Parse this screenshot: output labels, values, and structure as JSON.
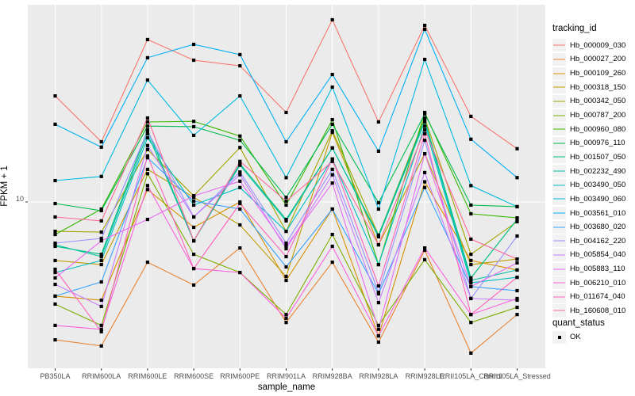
{
  "labels": {
    "y_axis_title": "FPKM + 1",
    "x_axis_title": "sample_name",
    "y_tick_label": "10"
  },
  "legend": {
    "tracking_title": "tracking_id",
    "quant_title": "quant_status",
    "quant_items": [
      {
        "label": "OK",
        "marker": "black-square"
      }
    ]
  },
  "colors": {
    "panel_background": "#EBEBEB",
    "gridline": "#FFFFFF",
    "tick_text": "#4D4D4D",
    "tick_mark": "#333333",
    "point": "#000000",
    "legend_key_background": "#F2F2F2"
  },
  "chart_data": {
    "type": "line",
    "title": "",
    "xlabel": "sample_name",
    "ylabel": "FPKM + 1",
    "yscale": "log10",
    "y_ticks": [
      10
    ],
    "ylim": [
      1.3,
      110
    ],
    "grid": "major-white-on-gray",
    "legend_position": "right",
    "point_marker": "black-square",
    "categories": [
      "PB350LA",
      "RRIM600LA",
      "RRIM600LE",
      "RRIM600SE",
      "RRIM600PE",
      "RRIM901LA",
      "RRIM928BA",
      "RRIM928LA",
      "RRIM928LE",
      "RRII105LA_Control",
      "RRII105LA_Stressed"
    ],
    "series": [
      {
        "name": "Hb_000009_030",
        "color": "#F8766D",
        "values": [
          38.2,
          21.4,
          77.9,
          60.0,
          55.9,
          31.0,
          100.0,
          27.5,
          93.2,
          29.5,
          19.6
        ]
      },
      {
        "name": "Hb_000027_200",
        "color": "#EA8331",
        "values": [
          1.75,
          1.62,
          4.67,
          3.5,
          5.59,
          2.18,
          4.67,
          1.7,
          5.43,
          1.48,
          2.41
        ]
      },
      {
        "name": "Hb_000109_260",
        "color": "#D89000",
        "values": [
          3.04,
          2.89,
          11.7,
          7.26,
          10.0,
          3.71,
          9.14,
          1.84,
          12.9,
          4.77,
          4.23
        ]
      },
      {
        "name": "Hb_000318_150",
        "color": "#C09B00",
        "values": [
          4.77,
          4.53,
          15.1,
          10.6,
          7.48,
          3.9,
          24.1,
          5.82,
          18.4,
          4.53,
          4.86
        ]
      },
      {
        "name": "Hb_000342_050",
        "color": "#A3A500",
        "values": [
          6.9,
          6.83,
          19.4,
          10.8,
          19.9,
          6.9,
          24.6,
          6.57,
          28.9,
          5.16,
          7.79
        ]
      },
      {
        "name": "Hb_000787_200",
        "color": "#7CAE00",
        "values": [
          2.75,
          2.1,
          14.3,
          5.16,
          4.1,
          2.41,
          6.63,
          2.1,
          4.82,
          2.18,
          2.64
        ]
      },
      {
        "name": "Hb_000960_080",
        "color": "#39B600",
        "values": [
          6.63,
          9.14,
          27.5,
          27.7,
          23.0,
          9.61,
          28.3,
          4.53,
          31.0,
          8.61,
          8.18
        ]
      },
      {
        "name": "Hb_000976_110",
        "color": "#00BB4E",
        "values": [
          9.8,
          8.96,
          26.1,
          25.9,
          21.8,
          10.6,
          26.7,
          9.9,
          30.4,
          9.61,
          9.42
        ]
      },
      {
        "name": "Hb_001507_050",
        "color": "#00BF7D",
        "values": [
          5.71,
          5.16,
          24.9,
          6.12,
          16.2,
          8.02,
          19.8,
          6.57,
          28.3,
          3.83,
          8.02
        ]
      },
      {
        "name": "Hb_002232_490",
        "color": "#00C1A3",
        "values": [
          5.82,
          5.01,
          23.7,
          6.12,
          15.9,
          7.87,
          19.8,
          6.44,
          27.5,
          3.71,
          4.23
        ]
      },
      {
        "name": "Hb_003490_050",
        "color": "#00BFC4",
        "values": [
          4.1,
          4.77,
          22.5,
          9.61,
          12.0,
          6.9,
          17.2,
          4.53,
          26.1,
          3.6,
          3.86
        ]
      },
      {
        "name": "Hb_003490_060",
        "color": "#00BAE0",
        "values": [
          13.1,
          13.8,
          46.7,
          23.2,
          38.2,
          13.6,
          42.7,
          9.14,
          60.6,
          12.3,
          9.42
        ]
      },
      {
        "name": "Hb_003561_010",
        "color": "#00B0F6",
        "values": [
          26.7,
          20.0,
          61.9,
          73.3,
          64.4,
          21.4,
          50.1,
          19.0,
          88.7,
          22.1,
          13.6
        ]
      },
      {
        "name": "Hb_003680_020",
        "color": "#35A2FF",
        "values": [
          3.04,
          3.64,
          17.5,
          10.1,
          9.14,
          4.4,
          9.14,
          3.13,
          12.0,
          3.43,
          3.26
        ]
      },
      {
        "name": "Hb_004162_220",
        "color": "#9590FF",
        "values": [
          5.94,
          6.31,
          24.4,
          8.27,
          14.6,
          5.94,
          15.1,
          3.19,
          21.8,
          2.95,
          6.5
        ]
      },
      {
        "name": "Hb_005854_040",
        "color": "#C77CFF",
        "values": [
          3.53,
          2.67,
          20.4,
          8.27,
          14.1,
          5.54,
          14.1,
          2.8,
          14.5,
          2.95,
          2.89
        ]
      },
      {
        "name": "Hb_005883_110",
        "color": "#E76BF3",
        "values": [
          3.83,
          6.12,
          8.02,
          10.8,
          13.0,
          5.71,
          12.7,
          2.0,
          18.4,
          3.43,
          4.63
        ]
      },
      {
        "name": "Hb_006210_010",
        "color": "#FA62DB",
        "values": [
          2.1,
          2.0,
          12.3,
          4.31,
          4.1,
          2.3,
          5.71,
          1.84,
          5.59,
          2.41,
          2.95
        ]
      },
      {
        "name": "Hb_011674_040",
        "color": "#FF62BC",
        "values": [
          4.27,
          1.94,
          17.9,
          4.31,
          9.8,
          5.01,
          17.2,
          3.46,
          23.7,
          2.41,
          3.86
        ]
      },
      {
        "name": "Hb_160608_010",
        "color": "#FF6A98",
        "values": [
          8.27,
          7.87,
          28.9,
          6.12,
          16.7,
          10.1,
          16.7,
          5.82,
          24.9,
          6.25,
          4.86
        ]
      }
    ]
  }
}
